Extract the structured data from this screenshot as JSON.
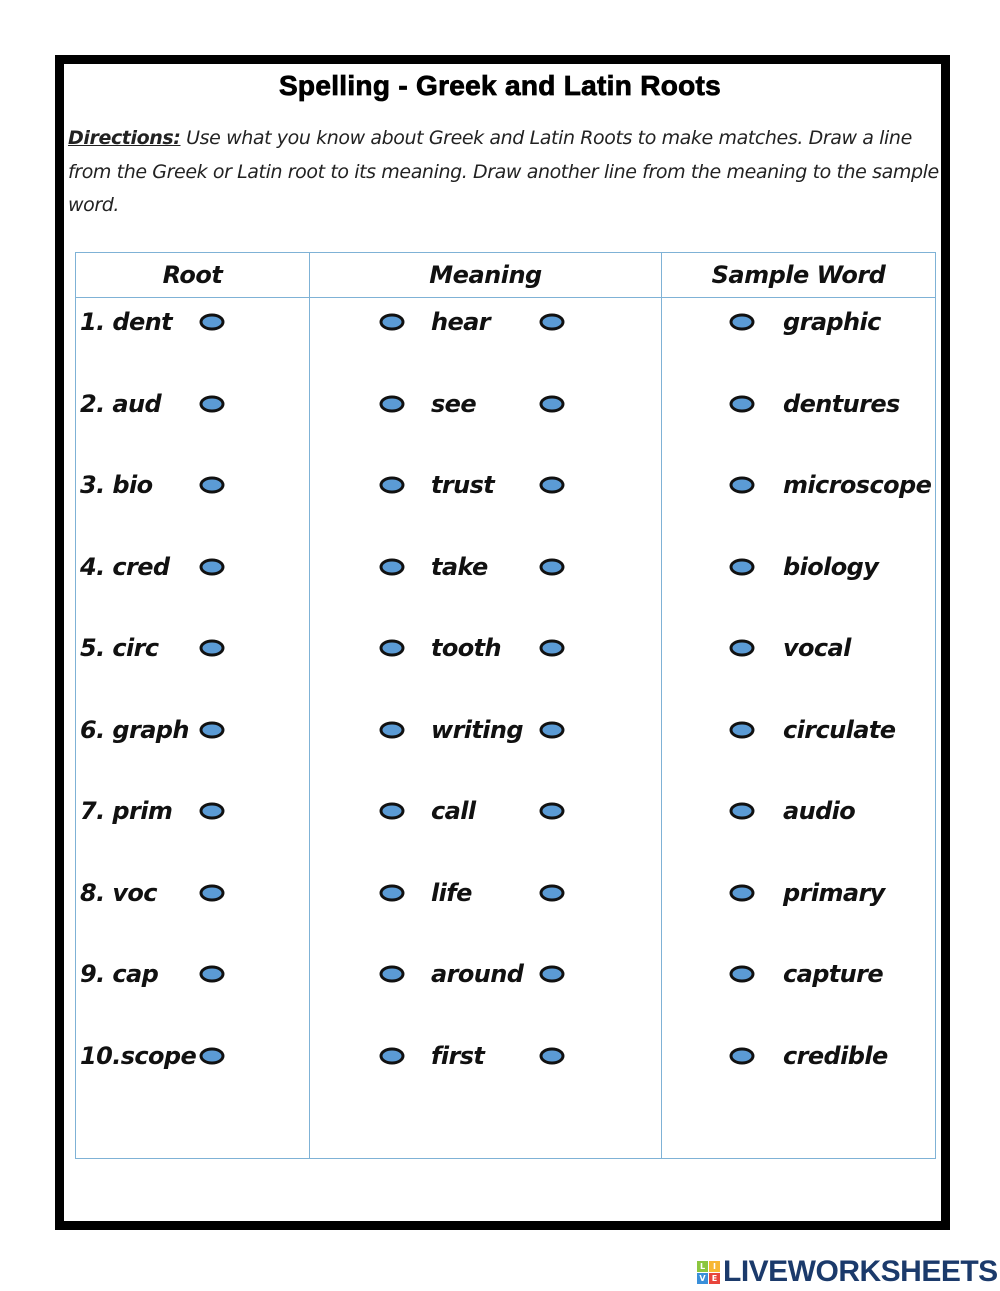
{
  "title": "Spelling -  Greek and Latin Roots",
  "directions": {
    "label": "Directions:",
    "text": " Use what you know about Greek and Latin Roots to make matches.  Draw a line from the Greek or Latin root to its meaning.  Draw another line from the meaning to the sample word."
  },
  "table": {
    "headers": [
      "Root",
      "Meaning",
      "Sample Word"
    ],
    "roots": [
      "1. dent",
      "2. aud",
      "3. bio",
      "4. cred",
      "5. circ",
      "6. graph",
      "7. prim",
      "8. voc",
      "9. cap",
      "10.scope"
    ],
    "meanings": [
      "hear",
      "see",
      "trust",
      "take",
      "tooth",
      "writing",
      "call",
      "life",
      "around",
      "first"
    ],
    "samples": [
      "graphic",
      "dentures",
      "microscope",
      "biology",
      "vocal",
      "circulate",
      "audio",
      "primary",
      "capture",
      "credible"
    ]
  },
  "colors": {
    "dot": "#5b9bd5",
    "border": "#7fb2d6",
    "brand": "#1b3a6b"
  },
  "logo": {
    "text": "LIVEWORKSHEETS",
    "badge": [
      "L",
      "I",
      "V",
      "E"
    ]
  }
}
